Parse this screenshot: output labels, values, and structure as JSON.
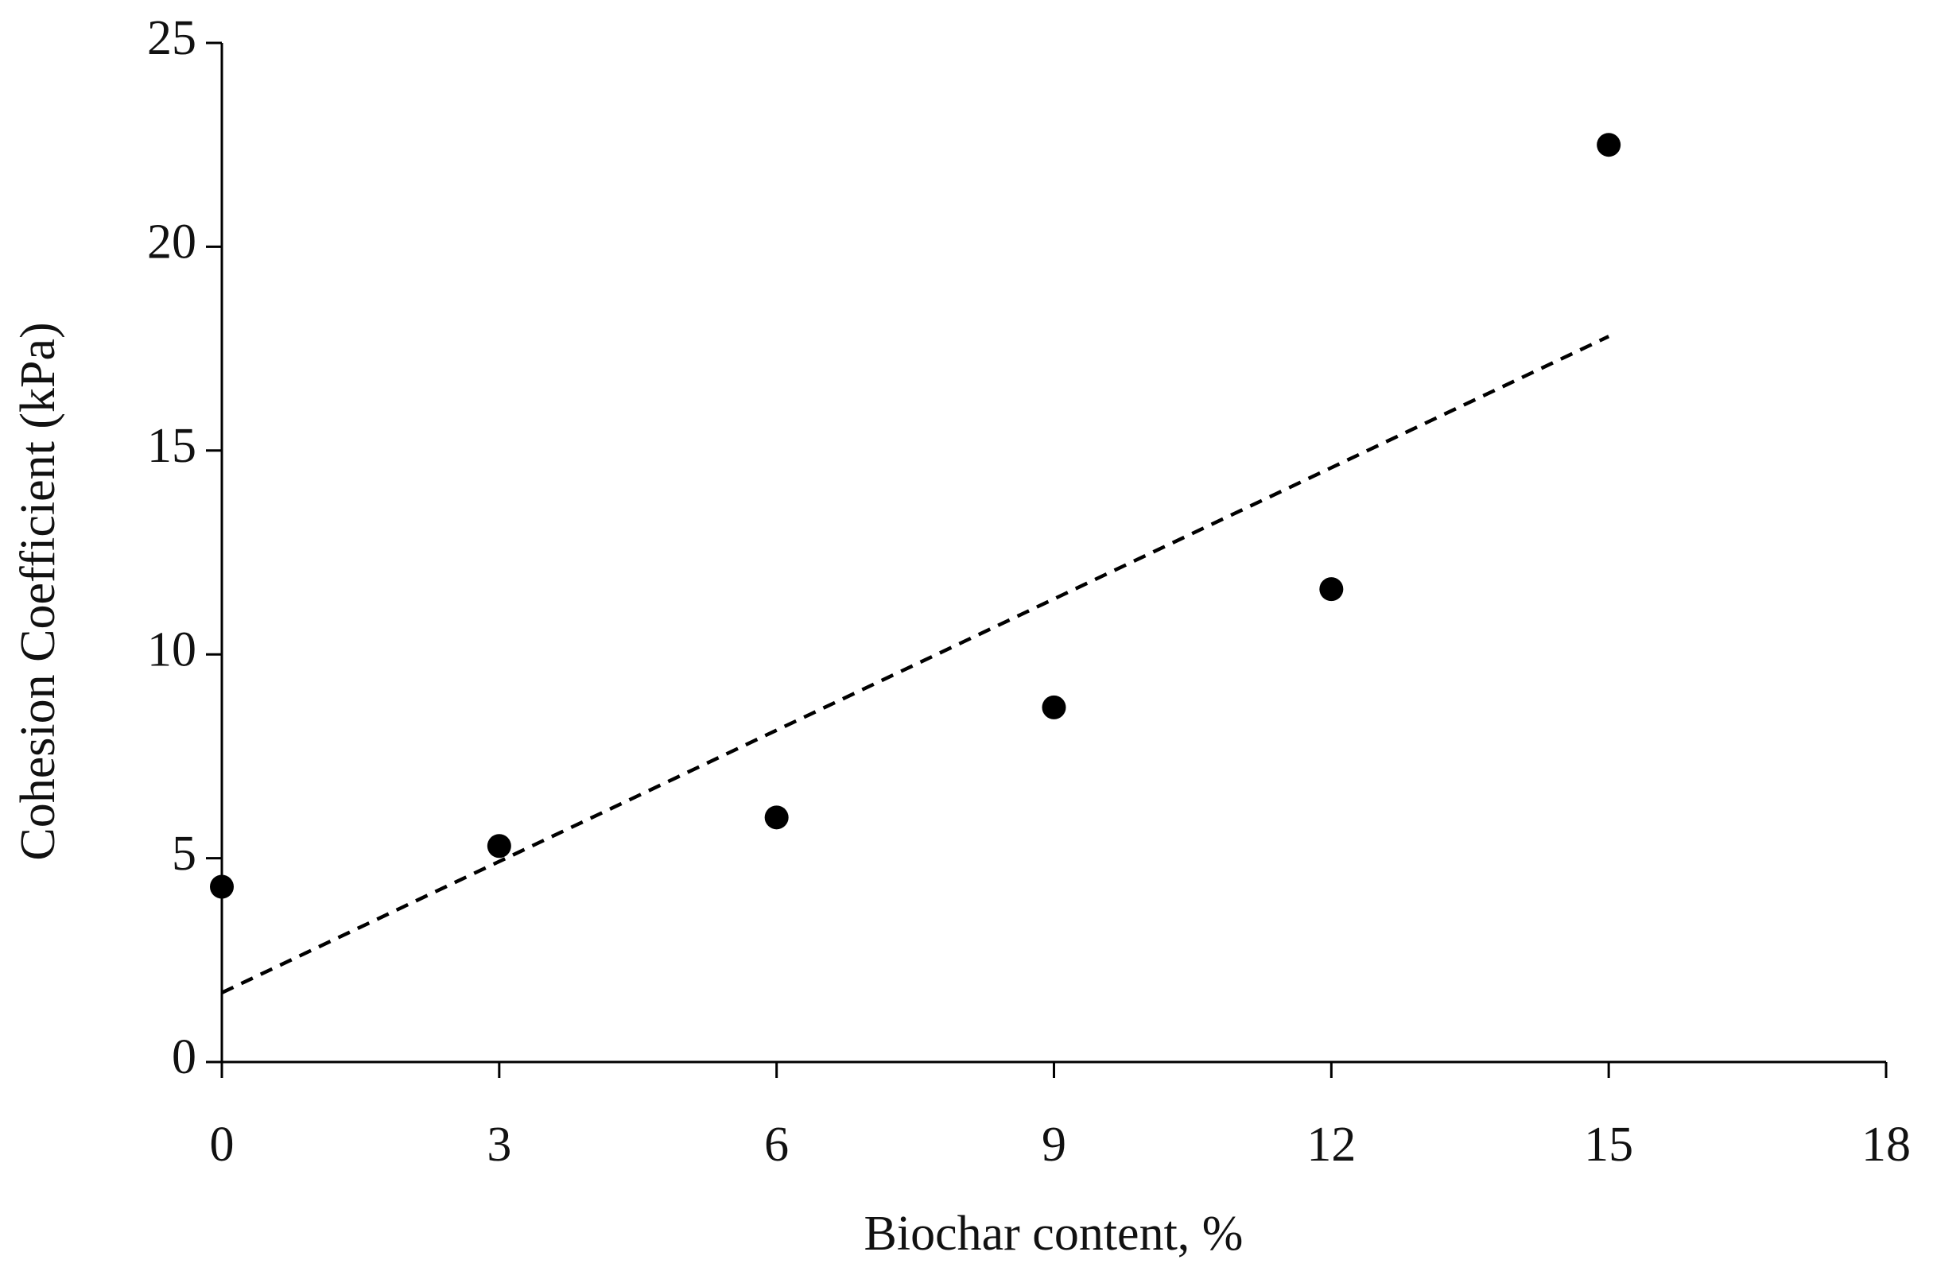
{
  "chart_data": {
    "type": "scatter",
    "x_label": "Biochar content, %",
    "y_label": "Cohesion Coefficient (kPa)",
    "xlim": [
      0,
      18
    ],
    "xticks": [
      0,
      3,
      6,
      9,
      12,
      15,
      18
    ],
    "ylim": [
      0,
      25
    ],
    "yticks": [
      0,
      5,
      10,
      15,
      20,
      25
    ],
    "grid": false,
    "series": [
      {
        "x": [
          0,
          3,
          6,
          9,
          12,
          15
        ],
        "values": [
          4.3,
          5.3,
          6.0,
          8.7,
          11.6,
          22.5
        ],
        "color": "#000000",
        "style": "markers"
      },
      {
        "x": [
          0,
          15
        ],
        "values": [
          1.7,
          17.8
        ],
        "color": "#000000",
        "style": "dashed-line"
      }
    ]
  }
}
